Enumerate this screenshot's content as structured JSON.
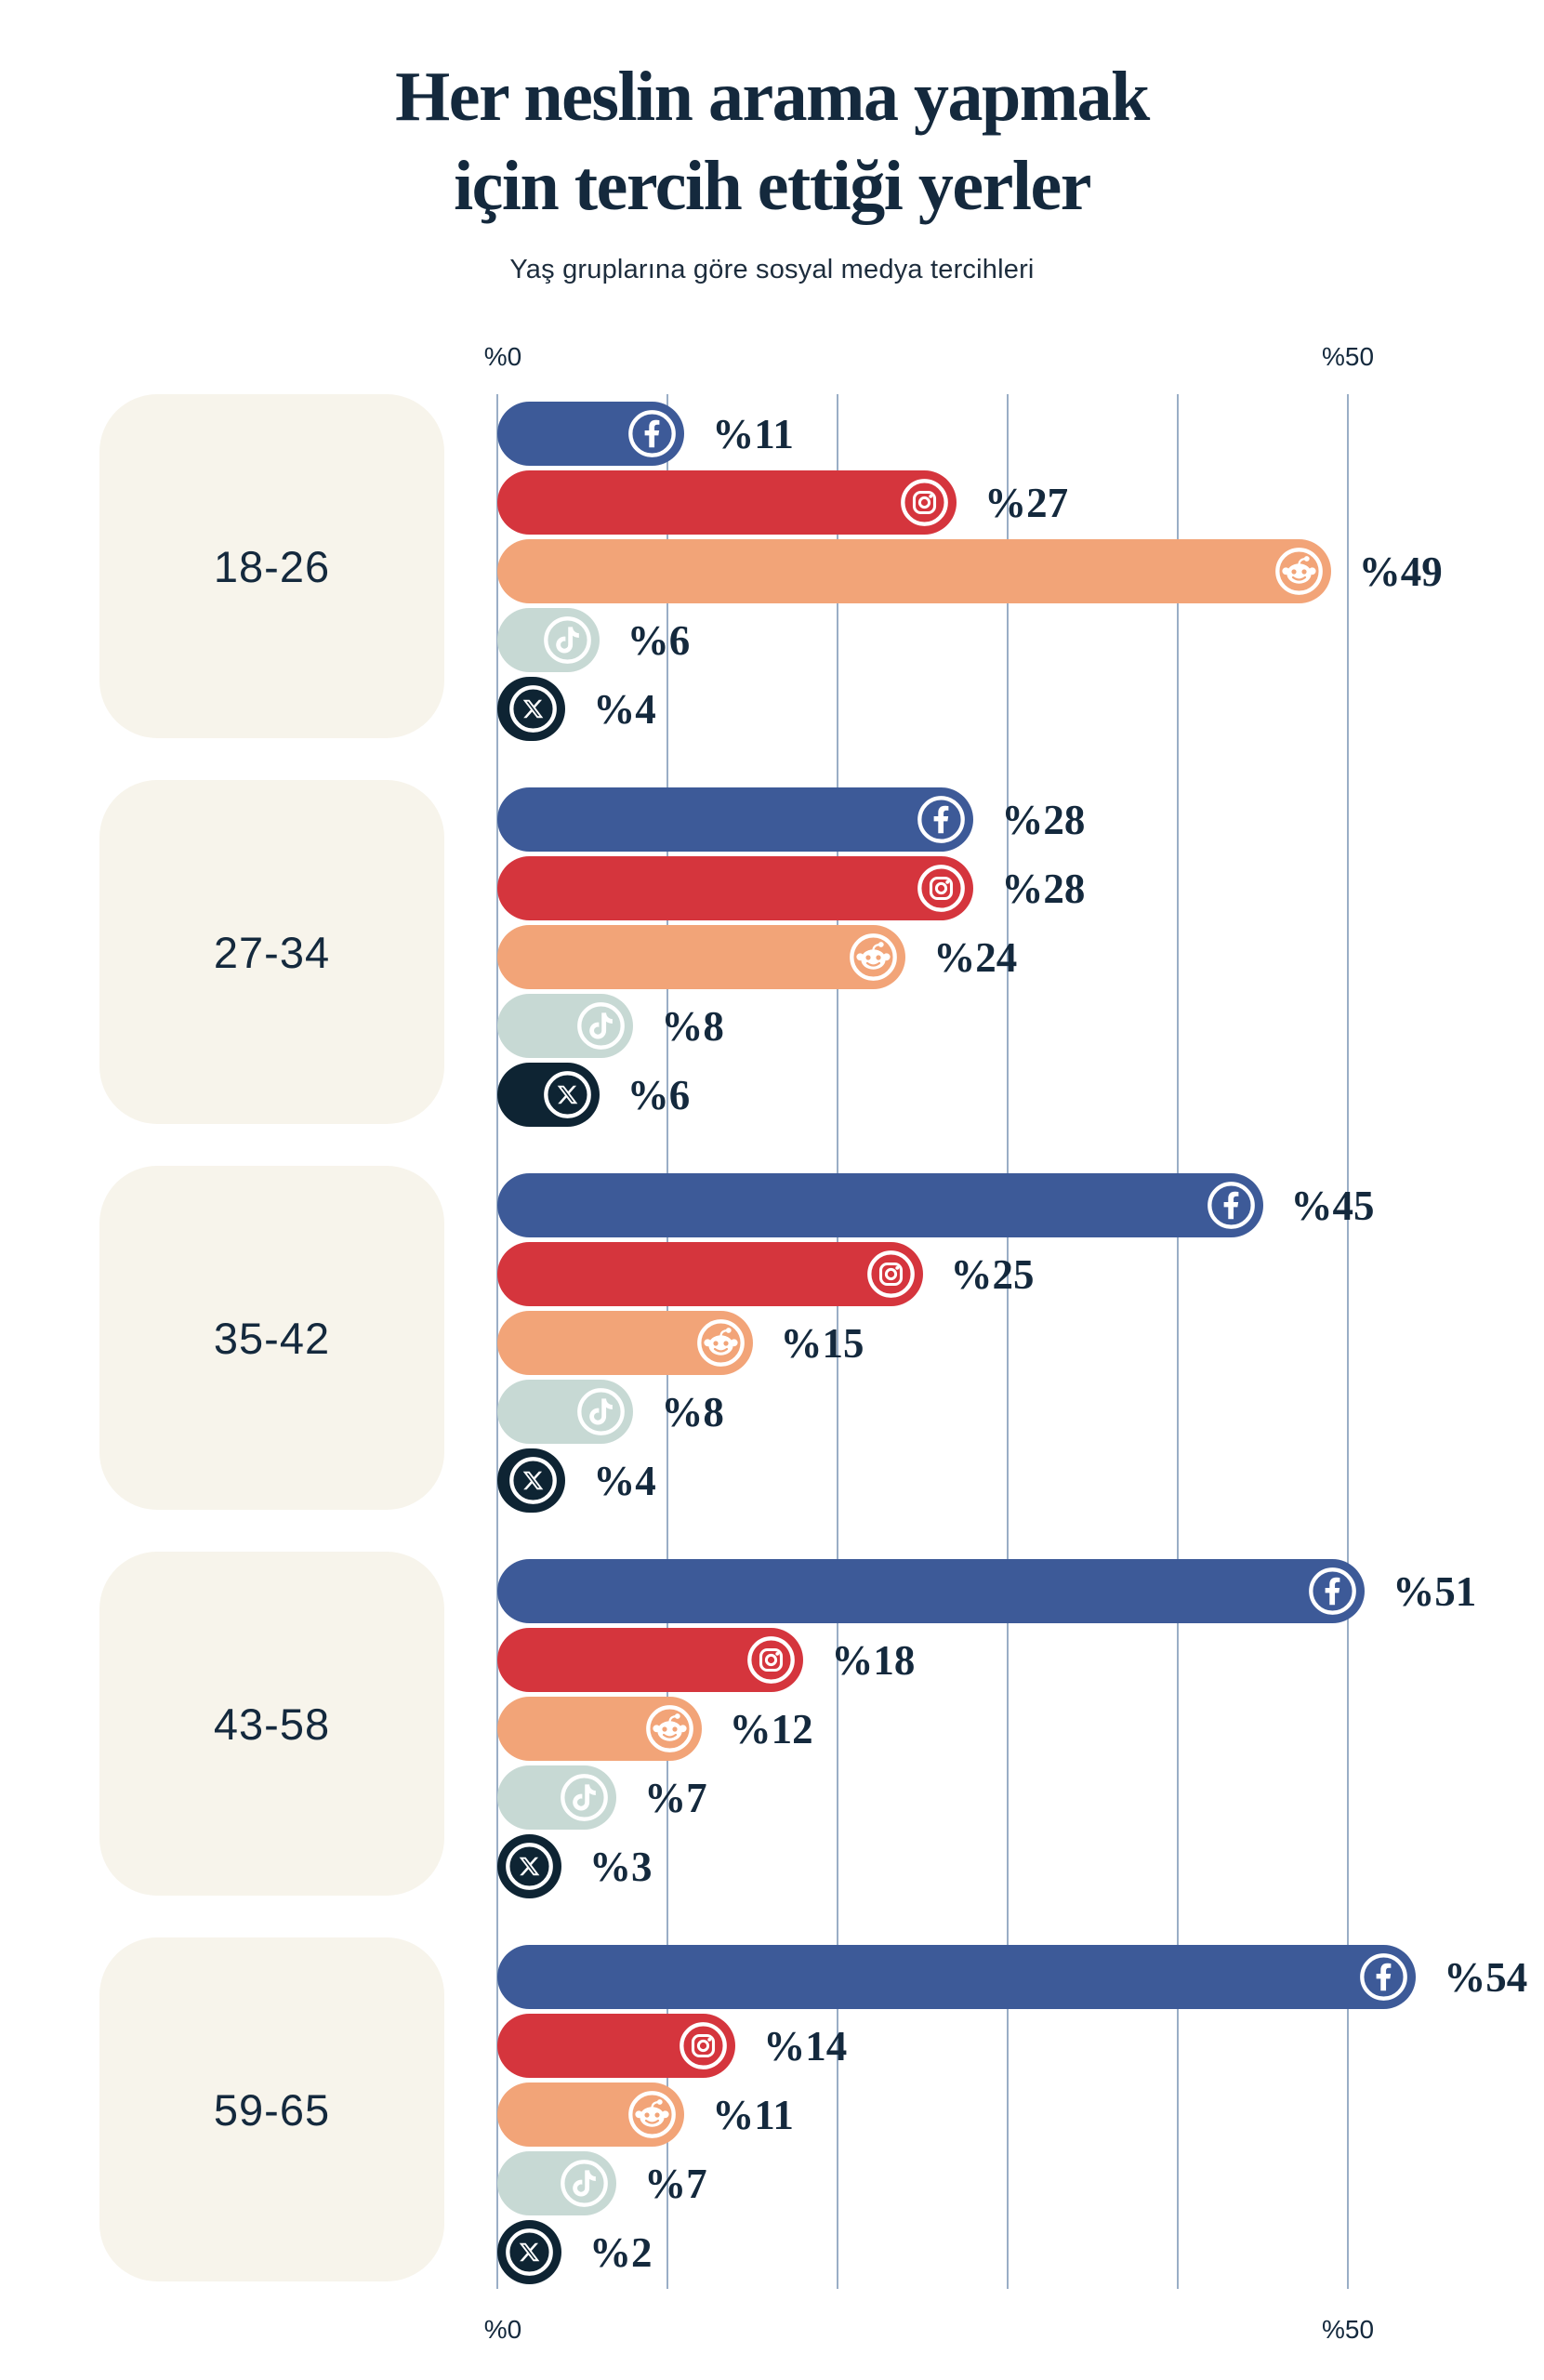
{
  "title_line1": "Her neslin arama yapmak",
  "title_line2": "için tercih ettiği yerler",
  "subtitle": "Yaş gruplarına göre sosyal medya tercihleri",
  "colors": {
    "background": "#FFFFFF",
    "text_navy": "#14293D",
    "card_background": "#F7F4EB",
    "gridline": "#9AAEC6",
    "facebook": "#3D5A98",
    "instagram": "#D5353D",
    "reddit": "#F2A478",
    "tiktok": "#C7D9D4",
    "x": "#0E2433"
  },
  "chart_data": {
    "type": "bar",
    "orientation": "horizontal",
    "title": "Her neslin arama yapmak için tercih ettiği yerler",
    "subtitle": "Yaş gruplarına göre sosyal medya tercihleri",
    "xlim": [
      0,
      50
    ],
    "gridlines_every": 10,
    "grid": true,
    "legend_position": "none",
    "value_prefix": "%",
    "axis": {
      "min_label": "%0",
      "max_label": "%50"
    },
    "categories": [
      "18-26",
      "27-34",
      "35-42",
      "43-58",
      "59-65"
    ],
    "series": [
      {
        "name": "Facebook",
        "icon": "facebook-icon",
        "color": "#3D5A98",
        "values": [
          11,
          28,
          45,
          51,
          54
        ],
        "labels": [
          "%11",
          "%28",
          "%45",
          "%51",
          "%54"
        ]
      },
      {
        "name": "Instagram",
        "icon": "instagram-icon",
        "color": "#D5353D",
        "values": [
          27,
          28,
          25,
          18,
          14
        ],
        "labels": [
          "%27",
          "%28",
          "%25",
          "%18",
          "%14"
        ]
      },
      {
        "name": "Reddit",
        "icon": "reddit-icon",
        "color": "#F2A478",
        "values": [
          49,
          24,
          15,
          12,
          11
        ],
        "labels": [
          "%49",
          "%24",
          "%15",
          "%12",
          "%11"
        ]
      },
      {
        "name": "TikTok",
        "icon": "tiktok-icon",
        "color": "#C7D9D4",
        "values": [
          6,
          8,
          8,
          7,
          7
        ],
        "labels": [
          "%6",
          "%8",
          "%8",
          "%7",
          "%7"
        ]
      },
      {
        "name": "X",
        "icon": "x-icon",
        "color": "#0E2433",
        "values": [
          4,
          6,
          4,
          3,
          2
        ],
        "labels": [
          "%4",
          "%6",
          "%4",
          "%3",
          "%2"
        ]
      }
    ]
  }
}
